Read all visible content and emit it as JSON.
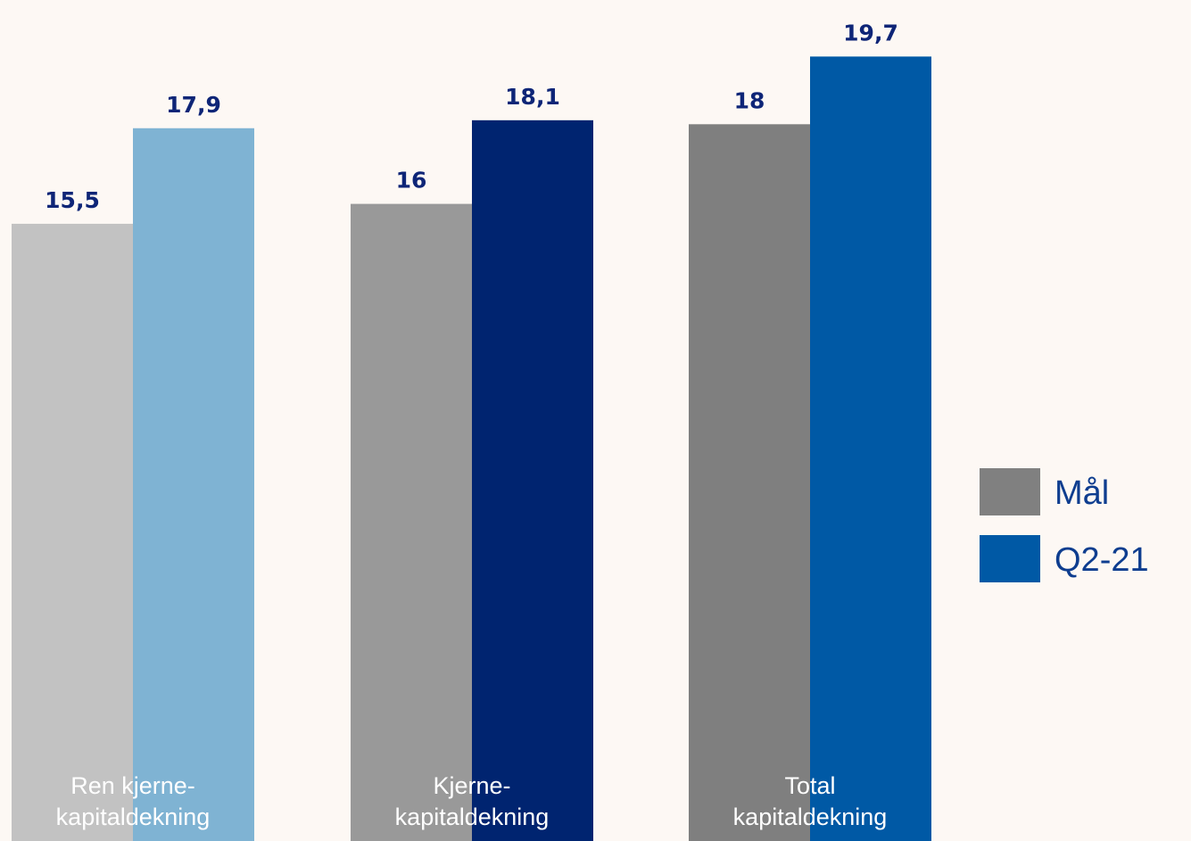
{
  "chart_data": {
    "type": "bar",
    "categories": [
      [
        "Ren kjerne-",
        "kapitaldekning"
      ],
      [
        "Kjerne-",
        "kapitaldekning"
      ],
      [
        "Total",
        "kapitaldekning"
      ]
    ],
    "series": [
      {
        "name": "Mål",
        "values": [
          15.5,
          16,
          18
        ],
        "value_labels": [
          "15,5",
          "16",
          "18"
        ],
        "colors": [
          "#c2c2c2",
          "#999999",
          "#7f7f7f"
        ]
      },
      {
        "name": "Q2-21",
        "values": [
          17.9,
          18.1,
          19.7
        ],
        "value_labels": [
          "17,9",
          "18,1",
          "19,7"
        ],
        "colors": [
          "#7fb3d3",
          "#002470",
          "#0059a5"
        ]
      }
    ],
    "legend": {
      "placement": "right",
      "items": [
        {
          "label": "Mål",
          "color": "#808080"
        },
        {
          "label": "Q2-21",
          "color": "#0059a5"
        }
      ]
    },
    "ylim": [
      0,
      20
    ],
    "grid": false
  }
}
